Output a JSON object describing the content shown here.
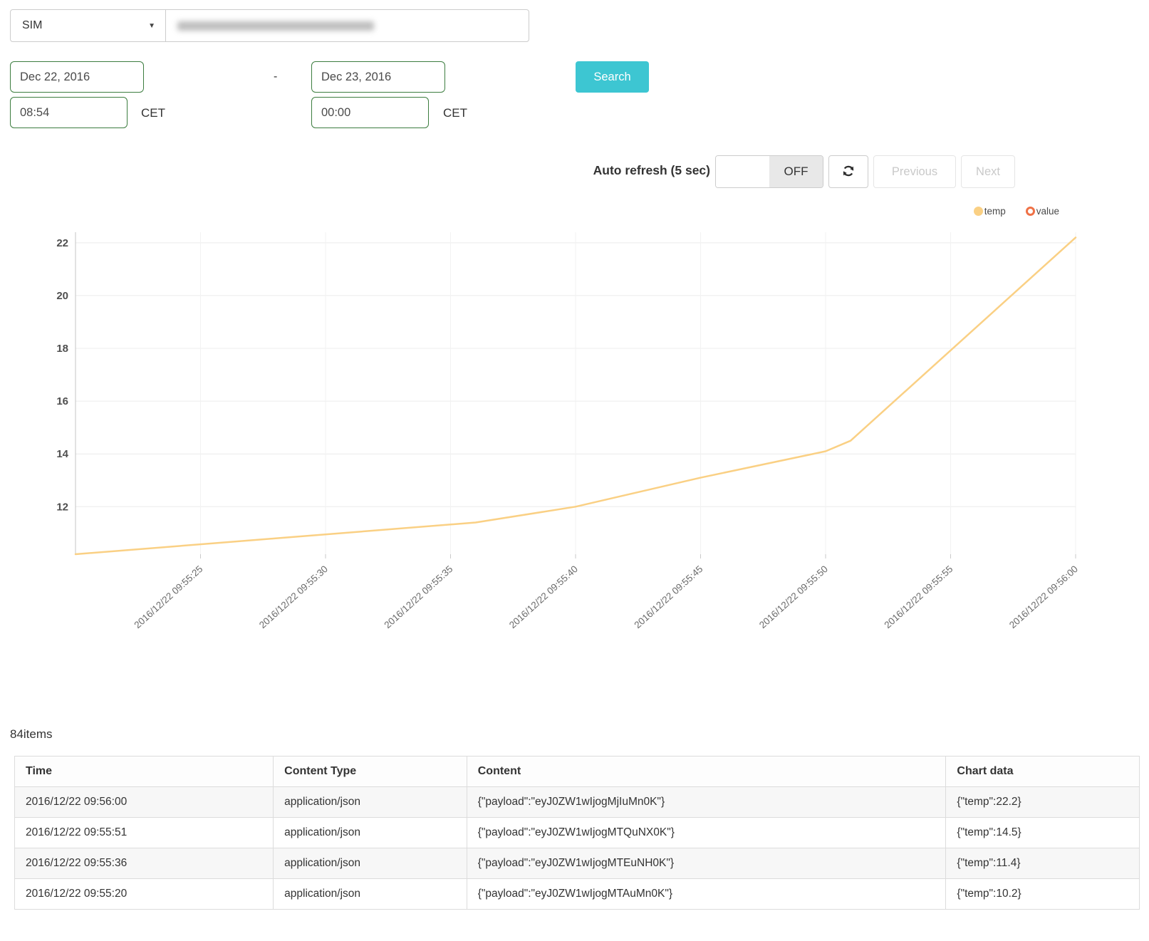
{
  "colors": {
    "accent": "#3dc6d2",
    "input_border_green": "#3c7d3f",
    "temp_series": "#fad084",
    "value_series": "#ef7146"
  },
  "filters": {
    "type_selector_value": "SIM",
    "date_from": "Dec 22, 2016",
    "time_from": "08:54",
    "tz_from": "CET",
    "range_separator": "-",
    "date_to": "Dec 23, 2016",
    "time_to": "00:00",
    "tz_to": "CET",
    "search_label": "Search"
  },
  "toolbar": {
    "auto_refresh_label": "Auto refresh (5 sec)",
    "auto_refresh_state": "OFF",
    "previous_label": "Previous",
    "next_label": "Next"
  },
  "chart_data": {
    "type": "line",
    "title": "",
    "xlabel": "",
    "ylabel": "",
    "legend_position": "top-right",
    "grid": true,
    "x_tick_rotation": -42,
    "xlim": [
      "2016/12/22 09:55:20",
      "2016/12/22 09:56:00"
    ],
    "ylim": [
      10.2,
      22.4
    ],
    "y_ticks": [
      12,
      14,
      16,
      18,
      20,
      22
    ],
    "x_ticks": [
      "2016/12/22 09:55:25",
      "2016/12/22 09:55:30",
      "2016/12/22 09:55:35",
      "2016/12/22 09:55:40",
      "2016/12/22 09:55:45",
      "2016/12/22 09:55:50",
      "2016/12/22 09:55:55",
      "2016/12/22 09:56:00"
    ],
    "series": [
      {
        "name": "temp",
        "color": "#fad084",
        "points": [
          [
            "2016/12/22 09:55:20",
            10.2
          ],
          [
            "2016/12/22 09:55:28",
            10.8
          ],
          [
            "2016/12/22 09:55:36",
            11.4
          ],
          [
            "2016/12/22 09:55:40",
            12.0
          ],
          [
            "2016/12/22 09:55:45",
            13.1
          ],
          [
            "2016/12/22 09:55:50",
            14.1
          ],
          [
            "2016/12/22 09:55:51",
            14.5
          ],
          [
            "2016/12/22 09:56:00",
            22.2
          ]
        ]
      },
      {
        "name": "value",
        "color": "#ef7146",
        "points": []
      }
    ]
  },
  "results": {
    "count_label": "84items",
    "table": {
      "headers": [
        "Time",
        "Content Type",
        "Content",
        "Chart data"
      ],
      "rows": [
        [
          "2016/12/22 09:56:00",
          "application/json",
          "{\"payload\":\"eyJ0ZW1wIjogMjIuMn0K\"}",
          "{\"temp\":22.2}"
        ],
        [
          "2016/12/22 09:55:51",
          "application/json",
          "{\"payload\":\"eyJ0ZW1wIjogMTQuNX0K\"}",
          "{\"temp\":14.5}"
        ],
        [
          "2016/12/22 09:55:36",
          "application/json",
          "{\"payload\":\"eyJ0ZW1wIjogMTEuNH0K\"}",
          "{\"temp\":11.4}"
        ],
        [
          "2016/12/22 09:55:20",
          "application/json",
          "{\"payload\":\"eyJ0ZW1wIjogMTAuMn0K\"}",
          "{\"temp\":10.2}"
        ]
      ]
    }
  }
}
